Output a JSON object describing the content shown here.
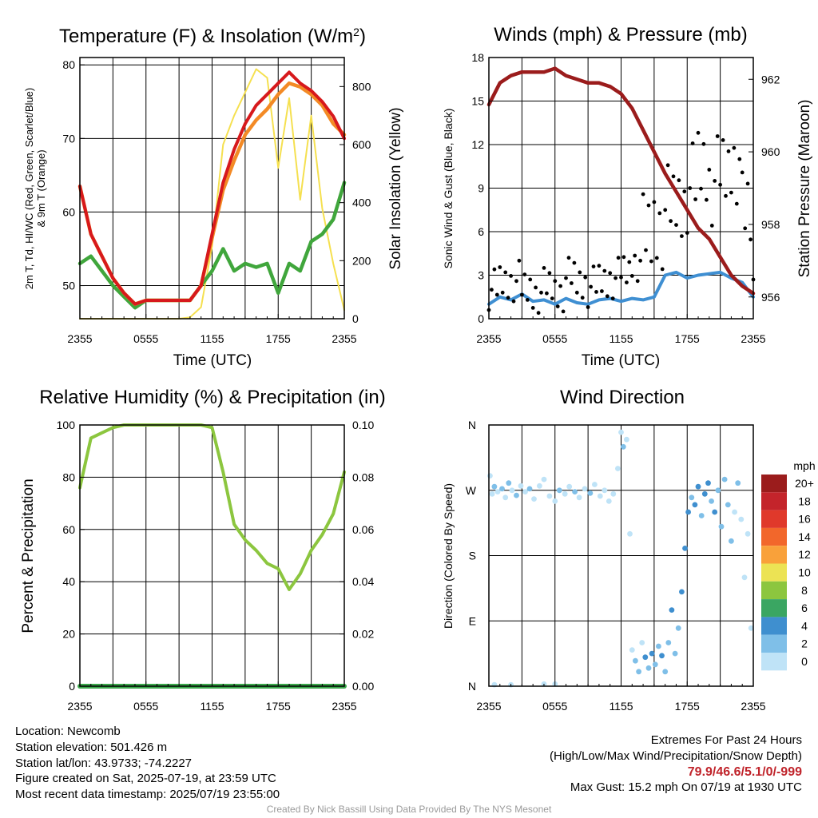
{
  "x_ticks": [
    "2355",
    "0555",
    "1155",
    "1755",
    "2355"
  ],
  "chart_data": [
    {
      "type": "line",
      "title": "Temperature (F) & Insolation (W/m2)",
      "title_text": "Temperature (F) & Insolation (W/m",
      "title_sup": "2",
      "title_close": ")",
      "xlabel": "Time (UTC)",
      "ylabel_left_line1": "2m T, Td, HI/WC (Red, Green, Scarlet/Blue)",
      "ylabel_left_line2": "& 9m T (Orange)",
      "ylabel_right": "Solar Insolation (Yellow)",
      "x_hours": [
        0,
        1,
        2,
        3,
        4,
        5,
        6,
        7,
        8,
        9,
        10,
        11,
        12,
        13,
        14,
        15,
        16,
        17,
        18,
        19,
        20,
        21,
        22,
        23,
        24
      ],
      "ylim": [
        45.5,
        81
      ],
      "y2lim": [
        0,
        900
      ],
      "yticks": [
        50,
        60,
        70,
        80
      ],
      "y2ticks": [
        0,
        200,
        400,
        600,
        800
      ],
      "colors": {
        "temp": "#d7191c",
        "orange9m": "#f38a25",
        "dewpoint": "#40a63c",
        "heat_index": "#b2182b",
        "insolation": "#f5e050"
      },
      "series": [
        {
          "name": "2m T",
          "color": "#d7191c",
          "values": [
            63.5,
            57,
            54,
            51,
            49,
            47.5,
            48,
            48,
            48,
            48,
            48,
            50,
            57,
            64,
            68.5,
            72,
            74.5,
            76,
            77.5,
            79,
            77.5,
            76.5,
            75,
            73,
            70
          ]
        },
        {
          "name": "9m T",
          "color": "#f38a25",
          "values": [
            63.5,
            57,
            54,
            51,
            49,
            47.5,
            48,
            48,
            48,
            48,
            48,
            50,
            56.5,
            63,
            67,
            70.5,
            72.5,
            74,
            76,
            77.5,
            77,
            76,
            74.5,
            72,
            70.5
          ]
        },
        {
          "name": "Td",
          "color": "#40a63c",
          "values": [
            53,
            54,
            52,
            50,
            48.5,
            47,
            48,
            48,
            48,
            48,
            48,
            50,
            52,
            55,
            52,
            53,
            52.5,
            53,
            49,
            53,
            52,
            56,
            57,
            59,
            64
          ]
        },
        {
          "name": "Insolation",
          "color": "#f5e050",
          "values": [
            0,
            0,
            0,
            0,
            0,
            0,
            0,
            0,
            0,
            0,
            5,
            40,
            250,
            600,
            700,
            780,
            860,
            830,
            520,
            760,
            410,
            700,
            380,
            190,
            30
          ]
        }
      ]
    },
    {
      "type": "scatter",
      "title": "Winds (mph) & Pressure (mb)",
      "xlabel": "Time (UTC)",
      "ylabel_left": "Sonic Wind & Gust (Blue, Black)",
      "ylabel_right": "Station Pressure (Maroon)",
      "x_hours": [
        0,
        1,
        2,
        3,
        4,
        5,
        6,
        7,
        8,
        9,
        10,
        11,
        12,
        13,
        14,
        15,
        16,
        17,
        18,
        19,
        20,
        21,
        22,
        23,
        24
      ],
      "ylim": [
        0,
        18
      ],
      "y2lim": [
        955.4,
        962.6
      ],
      "yticks": [
        0,
        3,
        6,
        9,
        12,
        15,
        18
      ],
      "y2ticks": [
        956,
        958,
        960,
        962
      ],
      "colors": {
        "wind": "#3f8fd2",
        "gust": "#000000",
        "pressure": "#9b1c1c"
      },
      "series": [
        {
          "name": "Sonic Wind",
          "color": "#3f8fd2",
          "values": [
            1,
            1.5,
            1.3,
            1.7,
            1.2,
            1.3,
            1,
            1.4,
            1.1,
            1,
            1.3,
            1.4,
            1.2,
            1.4,
            1.3,
            1.5,
            3,
            3.2,
            2.8,
            3,
            3.1,
            3.2,
            2.8,
            2.5,
            1.5
          ]
        },
        {
          "name": "Gust",
          "color": "#000000",
          "values": [
            2,
            2.5,
            2.6,
            2,
            1.8,
            2.1,
            1.9,
            2.8,
            2.5,
            2.2,
            2.6,
            2.8,
            3.2,
            4,
            5.5,
            6.5,
            7.5,
            8,
            9,
            10.5,
            9.5,
            10,
            11,
            7,
            2
          ]
        },
        {
          "name": "Station Pressure",
          "color": "#9b1c1c",
          "values": [
            961.3,
            961.9,
            962.1,
            962.2,
            962.2,
            962.2,
            962.3,
            962.1,
            962.0,
            961.9,
            961.9,
            961.8,
            961.6,
            961.2,
            960.6,
            960.0,
            959.4,
            958.9,
            958.4,
            957.9,
            957.6,
            957.1,
            956.6,
            956.3,
            956.1
          ]
        }
      ]
    },
    {
      "type": "line",
      "title": "Relative Humidity (%) & Precipitation (in)",
      "xlabel": "",
      "ylabel_left": "Percent & Precipitation",
      "x_hours": [
        0,
        1,
        2,
        3,
        4,
        5,
        6,
        7,
        8,
        9,
        10,
        11,
        12,
        13,
        14,
        15,
        16,
        17,
        18,
        19,
        20,
        21,
        22,
        23,
        24
      ],
      "ylim": [
        0,
        100
      ],
      "y2lim": [
        0,
        0.1
      ],
      "yticks": [
        0,
        20,
        40,
        60,
        80,
        100
      ],
      "y2ticks": [
        0.0,
        0.02,
        0.04,
        0.06,
        0.08,
        0.1
      ],
      "colors": {
        "rh": "#8cc63f",
        "precip": "#3aa64a"
      },
      "series": [
        {
          "name": "Relative Humidity",
          "color": "#8cc63f",
          "values": [
            76,
            95,
            97,
            99,
            100,
            100,
            100,
            100,
            100,
            100,
            100,
            100,
            99,
            82,
            62,
            56,
            52,
            47,
            45,
            37,
            43,
            52,
            58,
            66,
            82
          ]
        },
        {
          "name": "Precipitation",
          "color": "#3aa64a",
          "values": [
            0,
            0,
            0,
            0,
            0,
            0,
            0,
            0,
            0,
            0,
            0,
            0,
            0,
            0,
            0,
            0,
            0,
            0,
            0,
            0,
            0,
            0,
            0,
            0,
            0
          ]
        }
      ]
    },
    {
      "type": "scatter",
      "title": "Wind Direction",
      "xlabel": "",
      "ylabel_left": "Direction (Colored By Speed)",
      "direction_labels": [
        "N",
        "W",
        "S",
        "E",
        "N"
      ],
      "ylim_degrees": [
        360,
        0
      ],
      "colorbar_title": "mph",
      "colorbar": [
        {
          "label": "20+",
          "color": "#9b1c1c"
        },
        {
          "label": "18",
          "color": "#c4242b"
        },
        {
          "label": "16",
          "color": "#e0392b"
        },
        {
          "label": "14",
          "color": "#f2672b"
        },
        {
          "label": "12",
          "color": "#f9a13a"
        },
        {
          "label": "10",
          "color": "#ece354"
        },
        {
          "label": "8",
          "color": "#8cc63f"
        },
        {
          "label": "6",
          "color": "#3aa662"
        },
        {
          "label": "4",
          "color": "#3f8fcf"
        },
        {
          "label": "2",
          "color": "#7fbfe8"
        },
        {
          "label": "0",
          "color": "#bfe3f7"
        }
      ],
      "points": [
        {
          "x": 0.1,
          "deg": 290,
          "spd": 1
        },
        {
          "x": 0.3,
          "deg": 265,
          "spd": 1
        },
        {
          "x": 0.5,
          "deg": 275,
          "spd": 2
        },
        {
          "x": 0.8,
          "deg": 268,
          "spd": 1
        },
        {
          "x": 1.2,
          "deg": 272,
          "spd": 2
        },
        {
          "x": 1.5,
          "deg": 260,
          "spd": 1
        },
        {
          "x": 1.8,
          "deg": 280,
          "spd": 2
        },
        {
          "x": 2.1,
          "deg": 270,
          "spd": 1
        },
        {
          "x": 2.5,
          "deg": 263,
          "spd": 2
        },
        {
          "x": 2.9,
          "deg": 276,
          "spd": 1
        },
        {
          "x": 3.3,
          "deg": 268,
          "spd": 1
        },
        {
          "x": 3.7,
          "deg": 272,
          "spd": 2
        },
        {
          "x": 4.1,
          "deg": 258,
          "spd": 1
        },
        {
          "x": 4.6,
          "deg": 276,
          "spd": 1
        },
        {
          "x": 5.0,
          "deg": 285,
          "spd": 1
        },
        {
          "x": 5.5,
          "deg": 262,
          "spd": 1
        },
        {
          "x": 6.0,
          "deg": 255,
          "spd": 1
        },
        {
          "x": 6.4,
          "deg": 270,
          "spd": 2
        },
        {
          "x": 6.9,
          "deg": 265,
          "spd": 1
        },
        {
          "x": 7.3,
          "deg": 275,
          "spd": 1
        },
        {
          "x": 7.8,
          "deg": 268,
          "spd": 2
        },
        {
          "x": 8.2,
          "deg": 260,
          "spd": 1
        },
        {
          "x": 8.7,
          "deg": 272,
          "spd": 1
        },
        {
          "x": 9.2,
          "deg": 266,
          "spd": 2
        },
        {
          "x": 9.6,
          "deg": 278,
          "spd": 1
        },
        {
          "x": 10.1,
          "deg": 262,
          "spd": 1
        },
        {
          "x": 10.5,
          "deg": 270,
          "spd": 1
        },
        {
          "x": 10.9,
          "deg": 255,
          "spd": 1
        },
        {
          "x": 11.3,
          "deg": 265,
          "spd": 1
        },
        {
          "x": 11.7,
          "deg": 300,
          "spd": 1
        },
        {
          "x": 12.0,
          "deg": 350,
          "spd": 1
        },
        {
          "x": 12.2,
          "deg": 330,
          "spd": 2
        },
        {
          "x": 12.5,
          "deg": 340,
          "spd": 1
        },
        {
          "x": 12.8,
          "deg": 210,
          "spd": 1
        },
        {
          "x": 13.0,
          "deg": 50,
          "spd": 1
        },
        {
          "x": 13.3,
          "deg": 35,
          "spd": 2
        },
        {
          "x": 13.6,
          "deg": 20,
          "spd": 3
        },
        {
          "x": 13.9,
          "deg": 60,
          "spd": 1
        },
        {
          "x": 14.2,
          "deg": 40,
          "spd": 4
        },
        {
          "x": 14.5,
          "deg": 25,
          "spd": 3
        },
        {
          "x": 14.8,
          "deg": 45,
          "spd": 4
        },
        {
          "x": 15.1,
          "deg": 30,
          "spd": 3
        },
        {
          "x": 15.4,
          "deg": 55,
          "spd": 2
        },
        {
          "x": 15.7,
          "deg": 42,
          "spd": 4
        },
        {
          "x": 16.0,
          "deg": 20,
          "spd": 3
        },
        {
          "x": 16.3,
          "deg": 60,
          "spd": 2
        },
        {
          "x": 16.6,
          "deg": 105,
          "spd": 4
        },
        {
          "x": 16.9,
          "deg": 45,
          "spd": 2
        },
        {
          "x": 17.2,
          "deg": 80,
          "spd": 3
        },
        {
          "x": 17.5,
          "deg": 130,
          "spd": 4
        },
        {
          "x": 17.8,
          "deg": 190,
          "spd": 4
        },
        {
          "x": 18.1,
          "deg": 240,
          "spd": 4
        },
        {
          "x": 18.4,
          "deg": 260,
          "spd": 3
        },
        {
          "x": 18.7,
          "deg": 250,
          "spd": 4
        },
        {
          "x": 19.0,
          "deg": 275,
          "spd": 4
        },
        {
          "x": 19.3,
          "deg": 235,
          "spd": 3
        },
        {
          "x": 19.6,
          "deg": 265,
          "spd": 4
        },
        {
          "x": 19.9,
          "deg": 280,
          "spd": 4
        },
        {
          "x": 20.2,
          "deg": 255,
          "spd": 3
        },
        {
          "x": 20.5,
          "deg": 240,
          "spd": 4
        },
        {
          "x": 20.8,
          "deg": 270,
          "spd": 3
        },
        {
          "x": 21.1,
          "deg": 220,
          "spd": 2
        },
        {
          "x": 21.4,
          "deg": 285,
          "spd": 3
        },
        {
          "x": 21.7,
          "deg": 250,
          "spd": 2
        },
        {
          "x": 22.0,
          "deg": 200,
          "spd": 2
        },
        {
          "x": 22.3,
          "deg": 240,
          "spd": 1
        },
        {
          "x": 22.6,
          "deg": 280,
          "spd": 2
        },
        {
          "x": 22.9,
          "deg": 230,
          "spd": 1
        },
        {
          "x": 23.2,
          "deg": 150,
          "spd": 1
        },
        {
          "x": 23.5,
          "deg": 210,
          "spd": 1
        },
        {
          "x": 23.8,
          "deg": 80,
          "spd": 1
        },
        {
          "x": 2.0,
          "deg": 2,
          "spd": 1
        },
        {
          "x": 5.0,
          "deg": 3,
          "spd": 1
        },
        {
          "x": 6.0,
          "deg": 3,
          "spd": 1
        },
        {
          "x": 0.5,
          "deg": 2,
          "spd": 1
        }
      ]
    }
  ],
  "footer": {
    "location": "Location: Newcomb",
    "elevation": "Station elevation: 501.426 m",
    "latlon": "Station lat/lon: 43.9733; -74.2227",
    "created": "Figure created on Sat, 2025-07-19, at 23:59 UTC",
    "recent": "Most recent data timestamp: 2025/07/19 23:55:00",
    "extremes_title": "Extremes For Past 24 Hours",
    "extremes_sub": "(High/Low/Max Wind/Precipitation/Snow Depth)",
    "extremes_values": "79.9/46.6/5.1/0/-999",
    "max_gust": "Max Gust: 15.2 mph On 07/19 at 1930 UTC",
    "credit": "Created By Nick Bassill Using Data Provided By The NYS Mesonet"
  }
}
